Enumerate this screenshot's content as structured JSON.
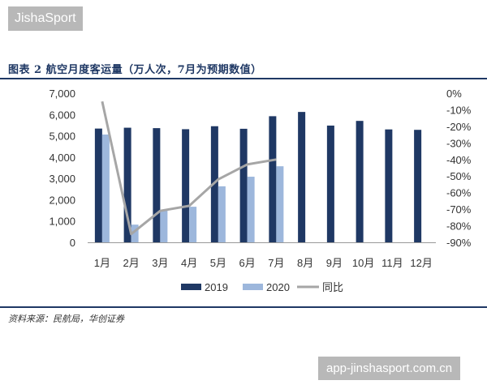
{
  "watermark_top": "JishaSport",
  "watermark_bottom": "app-jinshasport.com.cn",
  "figure_title": "图表 2   航空月度客运量（万人次，7月为预期数值）",
  "source_note": "资料来源：民航局，华创证券",
  "colors": {
    "s2019": "#1f3864",
    "s2020": "#9db7dc",
    "yoy": "#a6a6a6",
    "rule": "#1f3864"
  },
  "chart_data": {
    "type": "bar",
    "categories": [
      "1月",
      "2月",
      "3月",
      "4月",
      "5月",
      "6月",
      "7月",
      "8月",
      "9月",
      "10月",
      "11月",
      "12月"
    ],
    "series": [
      {
        "name": "2019",
        "kind": "bar",
        "axis": "left",
        "values": [
          5340,
          5380,
          5360,
          5310,
          5450,
          5330,
          5920,
          6120,
          5480,
          5700,
          5300,
          5280
        ]
      },
      {
        "name": "2020",
        "kind": "bar",
        "axis": "left",
        "values": [
          5060,
          830,
          1500,
          1670,
          2630,
          3080,
          3570,
          null,
          null,
          null,
          null,
          null
        ]
      },
      {
        "name": "同比",
        "kind": "line",
        "axis": "right",
        "values": [
          -5,
          -85,
          -71,
          -68,
          -52,
          -43,
          -40,
          null,
          null,
          null,
          null,
          null
        ]
      }
    ],
    "left_axis": {
      "ylim": [
        0,
        7000
      ],
      "ticks": [
        "0",
        "1,000",
        "2,000",
        "3,000",
        "4,000",
        "5,000",
        "6,000",
        "7,000"
      ]
    },
    "right_axis": {
      "ylim": [
        -90,
        0
      ],
      "ticks": [
        "-90%",
        "-80%",
        "-70%",
        "-60%",
        "-50%",
        "-40%",
        "-30%",
        "-20%",
        "-10%",
        "0%"
      ]
    },
    "legend_position": "bottom"
  }
}
